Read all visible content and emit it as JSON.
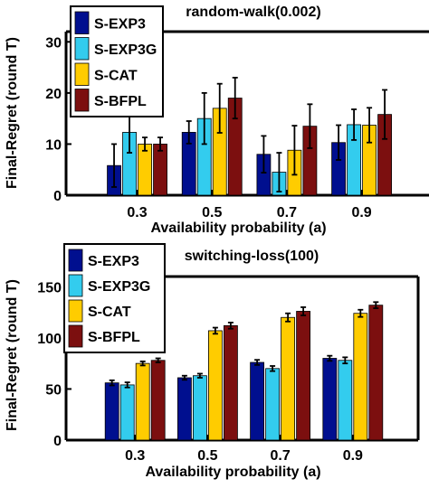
{
  "chart_data": [
    {
      "type": "bar",
      "title": "random-walk(0.002)",
      "xlabel": "Availability probability (a)",
      "ylabel": "Final-Regret (round T)",
      "categories": [
        "0.3",
        "0.5",
        "0.7",
        "0.9"
      ],
      "ylim": [
        0,
        32
      ],
      "yticks": [
        0,
        10,
        20,
        30
      ],
      "grid": false,
      "legend_position": "top-left",
      "series": [
        {
          "name": "S-EXP3",
          "color": "#000f8f",
          "values": [
            5.8,
            12.3,
            8.0,
            10.3
          ],
          "errors": [
            4.2,
            2.2,
            3.6,
            3.4
          ]
        },
        {
          "name": "S-EXP3G",
          "color": "#33ccee",
          "values": [
            12.3,
            15.0,
            4.5,
            13.8
          ],
          "errors": [
            4.0,
            5.0,
            3.8,
            3.0
          ]
        },
        {
          "name": "S-CAT",
          "color": "#ffcc00",
          "values": [
            10.0,
            17.0,
            8.8,
            13.7
          ],
          "errors": [
            1.3,
            4.8,
            4.8,
            3.4
          ]
        },
        {
          "name": "S-BFPL",
          "color": "#7c0f0f",
          "values": [
            10.0,
            19.0,
            13.5,
            15.8
          ],
          "errors": [
            1.3,
            4.0,
            4.3,
            4.8
          ]
        }
      ]
    },
    {
      "type": "bar",
      "title": "switching-loss(100)",
      "xlabel": "Availability probability (a)",
      "ylabel": "Final-Regret (round T)",
      "categories": [
        "0.3",
        "0.5",
        "0.7",
        "0.9"
      ],
      "ylim": [
        0,
        160
      ],
      "yticks": [
        0,
        50,
        100,
        150
      ],
      "grid": false,
      "legend_position": "top-left",
      "series": [
        {
          "name": "S-EXP3",
          "color": "#000f8f",
          "values": [
            56,
            61,
            76,
            80
          ],
          "errors": [
            2.5,
            2,
            2.5,
            2.5
          ]
        },
        {
          "name": "S-EXP3G",
          "color": "#33ccee",
          "values": [
            54,
            63,
            70,
            78
          ],
          "errors": [
            2.5,
            2,
            2.5,
            3
          ]
        },
        {
          "name": "S-CAT",
          "color": "#ffcc00",
          "values": [
            75,
            107,
            120,
            124
          ],
          "errors": [
            2,
            3,
            4,
            3.5
          ]
        },
        {
          "name": "S-BFPL",
          "color": "#7c0f0f",
          "values": [
            78,
            112,
            126,
            132
          ],
          "errors": [
            2,
            3,
            4,
            3
          ]
        }
      ]
    }
  ]
}
